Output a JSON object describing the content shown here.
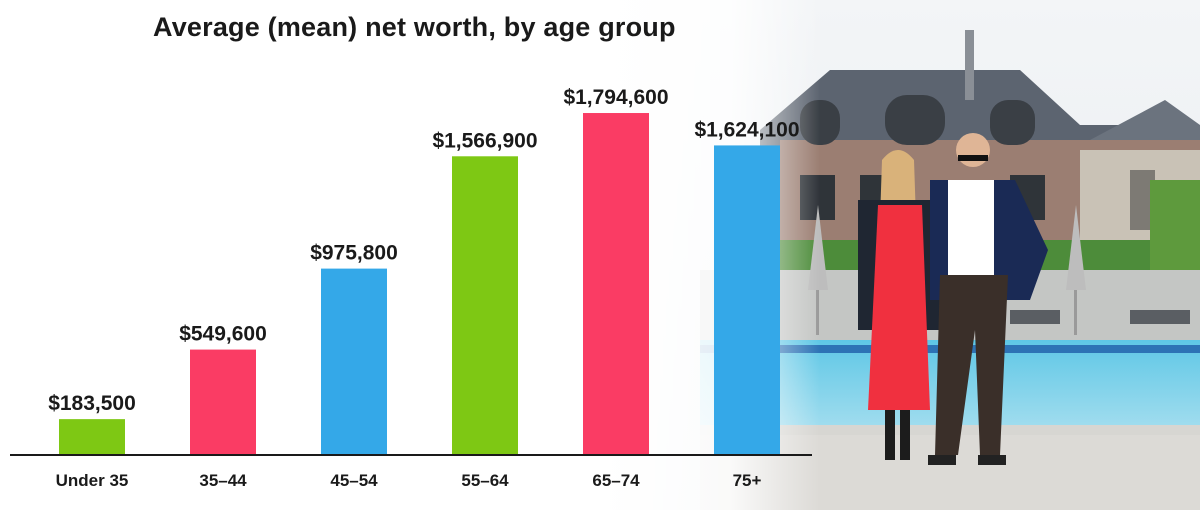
{
  "chart_data": {
    "type": "bar",
    "title": "Average (mean) net worth, by age group",
    "categories": [
      "Under 35",
      "35–44",
      "45–54",
      "55–64",
      "65–74",
      "75+"
    ],
    "values": [
      183500,
      549600,
      975800,
      1566900,
      1794600,
      1624100
    ],
    "value_labels": [
      "$183,500",
      "$549,600",
      "$975,800",
      "$1,566,900",
      "$1,794,600",
      "$1,624,100"
    ],
    "colors": [
      "#7ec814",
      "#fa3c64",
      "#34a8e8",
      "#7ec814",
      "#fa3c64",
      "#34a8e8"
    ],
    "xlabel": "",
    "ylabel": "",
    "ylim": [
      0,
      1800000
    ],
    "grid": false,
    "legend": "none"
  },
  "background": {
    "description_icon": "couple-in-front-of-house-photo"
  }
}
